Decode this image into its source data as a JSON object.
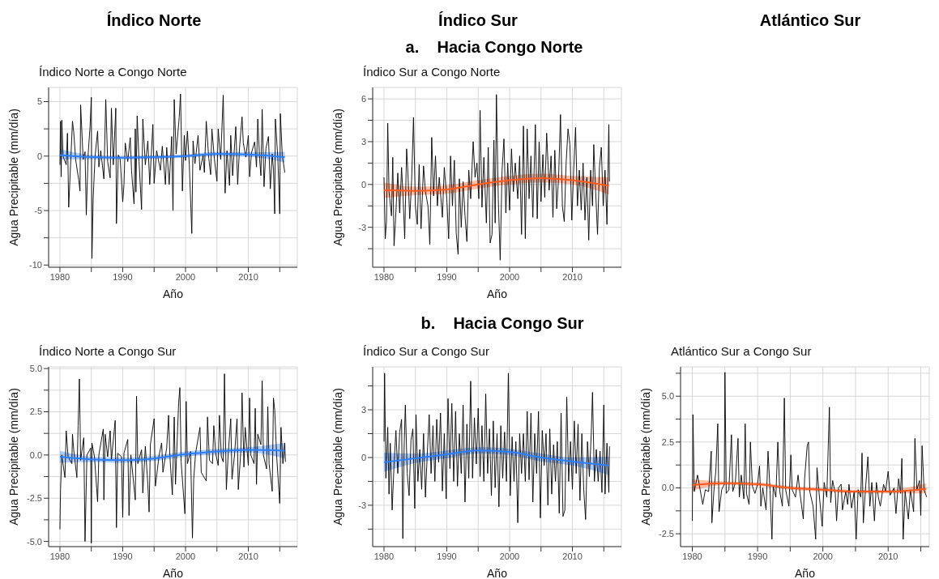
{
  "chart_data": [
    {
      "type": "other",
      "annotations": [
        "Índico Norte",
        "Índico Sur",
        "Atlántico Sur",
        "a.    Hacia Congo Norte",
        "b.    Hacia Congo Sur"
      ]
    },
    {
      "type": "line",
      "title": "Índico Norte a Congo Norte",
      "xlabel": "Año",
      "ylabel": "Agua Precipitable (mm/día)",
      "xlim": [
        1978.2,
        2017.8
      ],
      "xticks": [
        1980,
        {
          "value": 1985,
          "label": null
        },
        1990,
        {
          "value": 1995,
          "label": null
        },
        2000,
        {
          "value": 2005,
          "label": null
        },
        2010,
        {
          "value": 2015,
          "label": null
        }
      ],
      "ylim": [
        -10.2,
        6.3
      ],
      "yticks": [
        -10,
        {
          "value": -7.5,
          "label": null
        },
        -5,
        {
          "value": -2.5,
          "label": null
        },
        0,
        {
          "value": 2.5,
          "label": null
        },
        5
      ],
      "grid": true,
      "series": [
        {
          "color": "#000000",
          "x": [
            1980.0,
            1980.1,
            1980.2,
            1980.3,
            1980.5,
            1981.0,
            1981.2,
            1981.4,
            1982.0,
            1982.2,
            1982.5,
            1983.0,
            1983.2,
            1983.3,
            1983.7,
            1984.0,
            1984.2,
            1984.5,
            1984.8,
            1985.0,
            1985.1,
            1985.3,
            1985.6,
            1986.0,
            1986.2,
            1986.5,
            1987.0,
            1987.3,
            1987.6,
            1988.0,
            1988.2,
            1988.5,
            1988.9,
            1989.0,
            1989.3,
            1989.6,
            1990.0,
            1990.2,
            1990.4,
            1990.8,
            1991.2,
            1991.4,
            1991.8,
            1992.0,
            1992.1,
            1992.3,
            1992.6,
            1993.0,
            1993.2,
            1993.6,
            1994.0,
            1994.3,
            1994.8,
            1995.0,
            1995.4,
            1996.0,
            1996.3,
            1996.8,
            1997.0,
            1997.4,
            1997.8,
            1998.0,
            1998.2,
            1998.5,
            1999.0,
            1999.2,
            1999.5,
            1999.8,
            2000.0,
            2000.3,
            2000.6,
            2001.0,
            2001.2,
            2001.5,
            2002.0,
            2002.3,
            2002.8,
            2003.0,
            2003.3,
            2003.7,
            2004.0,
            2004.2,
            2004.6,
            2005.0,
            2005.2,
            2005.6,
            2006.0,
            2006.3,
            2006.6,
            2007.0,
            2007.2,
            2007.5,
            2008.0,
            2008.3,
            2008.6,
            2009.0,
            2009.2,
            2009.6,
            2010.0,
            2010.2,
            2010.5,
            2011.0,
            2011.3,
            2011.5,
            2011.8,
            2012.0,
            2012.2,
            2012.5,
            2012.8,
            2013.2,
            2013.5,
            2013.8,
            2014.0,
            2014.2,
            2014.3,
            2014.7,
            2015.0,
            2015.1,
            2015.4,
            2015.8
          ],
          "values": [
            -0.8,
            3.2,
            -1.9,
            3.3,
            0,
            -0.8,
            2.1,
            -4.7,
            3.2,
            2.2,
            -0.3,
            -2.2,
            -3.2,
            4.7,
            -0.3,
            0.4,
            -5.4,
            0.2,
            2.7,
            5.4,
            -9.4,
            -3.8,
            0,
            2.3,
            -1.0,
            0.5,
            -2.1,
            5.2,
            -0.5,
            -2.0,
            4.4,
            -0.8,
            4.4,
            -6.2,
            0.1,
            -0.3,
            -4.2,
            -2.6,
            1.2,
            -0.5,
            1.7,
            -1.3,
            -4.4,
            2.5,
            -3.3,
            3.7,
            -0.5,
            -4.9,
            3.4,
            -0.8,
            1.4,
            -2.6,
            2.9,
            -2.5,
            0.5,
            -1.3,
            0.9,
            -2.6,
            0.8,
            -2.6,
            1.8,
            -5.0,
            5.2,
            0.2,
            3.6,
            5.7,
            -3.2,
            1.9,
            -0.4,
            2.3,
            -0.8,
            -7.1,
            1.4,
            -0.7,
            1.9,
            -1.3,
            0.1,
            -1.5,
            3.2,
            -0.2,
            -1.7,
            2.5,
            -0.3,
            -2.3,
            2.5,
            -0.3,
            5.6,
            -3.4,
            0.5,
            -2.7,
            1.9,
            -1.8,
            2.7,
            -2.6,
            0.8,
            3.6,
            1.2,
            -0.1,
            1.9,
            -1.9,
            0.3,
            1.3,
            -1.0,
            3.4,
            -0.3,
            -1.8,
            4.3,
            -2.8,
            0.7,
            1.8,
            -3.0,
            0.2,
            -1.2,
            -5.3,
            3.4,
            -0.2,
            -5.3,
            3.9,
            0.1,
            -1.5
          ]
        },
        {
          "color": "#2c7fff",
          "x": [
            1980,
            1985,
            1990,
            1995,
            2000,
            2005,
            2010,
            2015.8
          ],
          "values": [
            0.1,
            -0.1,
            -0.15,
            -0.1,
            0.0,
            0.2,
            0.15,
            -0.1
          ],
          "lower": [
            -0.3,
            -0.3,
            -0.3,
            -0.25,
            -0.15,
            0.0,
            -0.05,
            -0.6
          ],
          "upper": [
            0.65,
            0.1,
            0.0,
            0.05,
            0.15,
            0.4,
            0.35,
            0.4
          ]
        }
      ]
    },
    {
      "type": "line",
      "title": "Índico Sur a Congo Norte",
      "xlabel": "Año",
      "ylabel": "Agua Precipitable (mm/día)",
      "xlim": [
        1978.2,
        2017.8
      ],
      "xticks": [
        1980,
        {
          "value": 1985,
          "label": null
        },
        1990,
        {
          "value": 1995,
          "label": null
        },
        2000,
        {
          "value": 2005,
          "label": null
        },
        2010,
        {
          "value": 2015,
          "label": null
        }
      ],
      "ylim": [
        -5.8,
        6.8
      ],
      "yticks": [
        {
          "value": -4.5,
          "label": null
        },
        -3,
        {
          "value": -1.5,
          "label": null
        },
        0,
        {
          "value": 1.5,
          "label": null
        },
        3,
        {
          "value": 4.5,
          "label": null
        },
        6
      ],
      "grid": true,
      "series": [
        {
          "color": "#000000",
          "x": [
            1980.0,
            1980.2,
            1980.4,
            1980.6,
            1980.8,
            1981.2,
            1981.4,
            1981.6,
            1981.8,
            1982.2,
            1982.5,
            1982.8,
            1983.0,
            1983.3,
            1983.6,
            1983.8,
            1984.1,
            1984.4,
            1984.7,
            1985.0,
            1985.3,
            1985.6,
            1985.9,
            1986.3,
            1986.6,
            1987.0,
            1987.3,
            1987.6,
            1987.9,
            1988.2,
            1988.5,
            1988.8,
            1989.3,
            1989.6,
            1990.0,
            1990.3,
            1990.6,
            1990.9,
            1991.2,
            1991.5,
            1991.8,
            1992.0,
            1992.3,
            1992.6,
            1992.9,
            1993.2,
            1993.5,
            1993.8,
            1994.2,
            1994.5,
            1994.8,
            1995.1,
            1995.3,
            1995.6,
            1995.9,
            1996.3,
            1996.6,
            1996.9,
            1997.2,
            1997.5,
            1997.7,
            1997.9,
            1998.2,
            1998.5,
            1998.8,
            1999.1,
            1999.4,
            1999.7,
            2000.0,
            2000.3,
            2000.6,
            2000.9,
            2001.3,
            2001.6,
            2001.9,
            2002.2,
            2002.5,
            2002.8,
            2003.1,
            2003.4,
            2003.7,
            2004.1,
            2004.4,
            2004.7,
            2005.0,
            2005.3,
            2005.6,
            2005.9,
            2006.3,
            2006.6,
            2006.9,
            2007.2,
            2007.5,
            2007.8,
            2008.1,
            2008.4,
            2008.7,
            2009.0,
            2009.3,
            2009.6,
            2009.9,
            2010.2,
            2010.5,
            2010.8,
            2011.1,
            2011.4,
            2011.7,
            2012.0,
            2012.3,
            2012.6,
            2012.9,
            2013.2,
            2013.4,
            2013.7,
            2014.0,
            2014.3,
            2014.6,
            2014.9,
            2015.2,
            2015.5,
            2015.8,
            2015.9
          ],
          "values": [
            0.5,
            -3.8,
            -2.6,
            4.3,
            -0.5,
            -2.2,
            1.9,
            -4.3,
            -2.8,
            0.8,
            -2.0,
            1.2,
            -0.5,
            -3.8,
            2.5,
            0.9,
            -2.4,
            0.3,
            4.7,
            -1.5,
            -2.8,
            1.4,
            -3.1,
            1.3,
            -0.5,
            -1.5,
            -4.2,
            3.3,
            -0.8,
            2.0,
            -1.5,
            0.5,
            -2.3,
            1.2,
            -1.0,
            -3.8,
            2.0,
            -1.5,
            1.7,
            -3.4,
            -4.9,
            0.4,
            -3.0,
            0.2,
            -2.2,
            -4.0,
            1.0,
            -1.0,
            3.0,
            0.5,
            1.5,
            -1.0,
            5.2,
            -1.6,
            1.9,
            -2.7,
            2.6,
            -4.1,
            -3.5,
            3.1,
            -2.7,
            6.3,
            -1.0,
            -5.3,
            1.0,
            3.2,
            -2.0,
            1.5,
            -1.8,
            2.5,
            -0.5,
            1.5,
            -1.0,
            2.0,
            -3.5,
            4.1,
            -3.8,
            3.9,
            -1.0,
            2.0,
            -2.3,
            4.2,
            -2.4,
            3.0,
            -1.2,
            2.1,
            -0.9,
            3.6,
            -0.4,
            2.0,
            -2.3,
            2.4,
            -1.7,
            0.5,
            4.9,
            -1.5,
            -2.6,
            1.5,
            3.9,
            2.8,
            -2.5,
            1.0,
            4.0,
            -1.5,
            1.0,
            -1.8,
            1.5,
            -2.5,
            0.5,
            -3.9,
            1.0,
            -1.5,
            2.8,
            -0.5,
            -3.5,
            1.2,
            2.6,
            -1.5,
            1.0,
            -2.8,
            4.2,
            0.2
          ]
        },
        {
          "color": "#ff5b1f",
          "x": [
            1980,
            1985,
            1990,
            1995,
            2000,
            2005,
            2010,
            2015.8
          ],
          "values": [
            -0.4,
            -0.45,
            -0.35,
            0.0,
            0.3,
            0.45,
            0.3,
            -0.1
          ],
          "lower": [
            -0.95,
            -0.75,
            -0.65,
            -0.3,
            0.0,
            0.15,
            0.0,
            -0.7
          ],
          "upper": [
            0.15,
            -0.15,
            -0.05,
            0.3,
            0.6,
            0.75,
            0.6,
            0.5
          ]
        }
      ]
    },
    {
      "type": "line",
      "title": "Índico Norte a Congo Sur",
      "xlabel": "Año",
      "ylabel": "Agua Precipitable (mm/día)",
      "xlim": [
        1978.2,
        2017.8
      ],
      "xticks": [
        1980,
        {
          "value": 1985,
          "label": null
        },
        1990,
        {
          "value": 1995,
          "label": null
        },
        2000,
        {
          "value": 2005,
          "label": null
        },
        2010,
        {
          "value": 2015,
          "label": null
        }
      ],
      "ylim": [
        -5.3,
        5.1
      ],
      "yticks": [
        {
          "value": -5,
          "label": "-5.0"
        },
        {
          "value": -3.75,
          "label": null
        },
        -2.5,
        {
          "value": -1.25,
          "label": null
        },
        {
          "value": 0,
          "label": "0.0"
        },
        {
          "value": 1.25,
          "label": null
        },
        2.5,
        {
          "value": 3.75,
          "label": null
        },
        {
          "value": 5,
          "label": "5.0"
        }
      ],
      "grid": true,
      "series": [
        {
          "color": "#000000",
          "x": [
            1980.0,
            1980.1,
            1980.3,
            1980.8,
            1981.0,
            1981.3,
            1981.9,
            1982.0,
            1982.2,
            1982.7,
            1982.9,
            1983.1,
            1983.3,
            1983.8,
            1984.0,
            1984.3,
            1984.9,
            1985.0,
            1985.1,
            1985.5,
            1986.0,
            1986.2,
            1986.9,
            1987.0,
            1987.2,
            1987.6,
            1988.0,
            1988.2,
            1988.8,
            1989.0,
            1989.2,
            1989.8,
            1990.0,
            1990.2,
            1990.8,
            1991.0,
            1991.3,
            1992.0,
            1992.2,
            1992.4,
            1993.0,
            1993.2,
            1993.6,
            1994.0,
            1994.2,
            1994.4,
            1995.0,
            1995.2,
            1995.8,
            1996.2,
            1996.4,
            1997.0,
            1997.3,
            1997.5,
            1997.9,
            1998.2,
            1998.4,
            1998.9,
            1999.1,
            1999.3,
            1999.9,
            2000.1,
            2000.3,
            2000.8,
            2001.1,
            2001.3,
            2001.6,
            2002.3,
            2002.5,
            2003.3,
            2003.5,
            2003.8,
            2004.3,
            2004.5,
            2004.8,
            2005.2,
            2005.4,
            2005.7,
            2006.0,
            2006.2,
            2006.5,
            2006.8,
            2007.2,
            2007.4,
            2007.8,
            2008.2,
            2008.4,
            2008.8,
            2009.0,
            2009.3,
            2009.5,
            2010.0,
            2010.2,
            2010.4,
            2010.9,
            2011.1,
            2011.3,
            2011.5,
            2012.0,
            2012.2,
            2012.4,
            2012.9,
            2013.1,
            2013.3,
            2013.8,
            2014.0,
            2014.2,
            2014.5,
            2015.0,
            2015.2,
            2015.5,
            2015.8,
            2015.9
          ],
          "values": [
            -4.3,
            -2.0,
            0.0,
            -1.3,
            1.4,
            -0.1,
            -0.5,
            1.2,
            0.3,
            -1.3,
            1.7,
            4.4,
            -0.3,
            1.0,
            -5.0,
            0.0,
            0.4,
            -5.1,
            0.7,
            -0.1,
            -2.7,
            0.0,
            1.5,
            -2.6,
            1.2,
            -0.1,
            1.4,
            -0.3,
            2.0,
            -4.2,
            0.1,
            -0.1,
            -3.6,
            0.1,
            0.9,
            -3.5,
            0.0,
            -2.6,
            3.4,
            -0.5,
            0.3,
            -2.2,
            0.5,
            -1.7,
            -3.3,
            0.6,
            2.1,
            -1.8,
            0.0,
            0.7,
            -1.0,
            0.4,
            2.3,
            0.0,
            -2.3,
            2.2,
            -1.7,
            3.0,
            3.9,
            -0.4,
            -3.4,
            3.1,
            -0.5,
            0.2,
            -4.8,
            -1.4,
            0.1,
            1.6,
            -1.0,
            -1.5,
            2.2,
            -0.3,
            -0.5,
            1.7,
            0.1,
            -0.6,
            2.3,
            -0.1,
            -0.4,
            4.7,
            -2.0,
            0.1,
            2.1,
            -1.4,
            0.0,
            2.1,
            -2.0,
            0.2,
            3.6,
            -0.7,
            1.6,
            -0.6,
            3.3,
            0.0,
            -0.5,
            2.7,
            -1.7,
            1.2,
            0.6,
            4.3,
            0.0,
            -0.8,
            2.8,
            -0.5,
            -2.1,
            3.3,
            2.6,
            0.0,
            -2.8,
            1.6,
            -0.5,
            0.7,
            -0.4
          ]
        },
        {
          "color": "#2c7fff",
          "x": [
            1980,
            1985,
            1990,
            1995,
            2000,
            2005,
            2010,
            2015.8
          ],
          "values": [
            -0.1,
            -0.25,
            -0.3,
            -0.2,
            0.05,
            0.2,
            0.3,
            0.25
          ],
          "lower": [
            -0.45,
            -0.4,
            -0.45,
            -0.35,
            -0.1,
            0.05,
            0.15,
            -0.2
          ],
          "upper": [
            0.25,
            -0.1,
            -0.15,
            -0.05,
            0.2,
            0.35,
            0.45,
            0.7
          ]
        }
      ]
    },
    {
      "type": "line",
      "title": "Índico Sur a Congo Sur",
      "xlabel": "Año",
      "ylabel": "Agua Precipitable (mm/día)",
      "xlim": [
        1978.2,
        2017.8
      ],
      "xticks": [
        1980,
        {
          "value": 1985,
          "label": null
        },
        1990,
        {
          "value": 1995,
          "label": null
        },
        2000,
        {
          "value": 2005,
          "label": null
        },
        2010,
        {
          "value": 2015,
          "label": null
        }
      ],
      "ylim": [
        -5.6,
        5.7
      ],
      "yticks": [
        {
          "value": -4.5,
          "label": null
        },
        -3,
        {
          "value": -1.5,
          "label": null
        },
        0,
        {
          "value": 1.5,
          "label": null
        },
        3,
        {
          "value": 4.5,
          "label": null
        }
      ],
      "grid": true,
      "series": [
        {
          "color": "#000000",
          "x": [
            1980.0,
            1980.1,
            1980.3,
            1980.6,
            1980.8,
            1981.0,
            1981.3,
            1981.6,
            1981.9,
            1982.2,
            1982.5,
            1982.8,
            1983.0,
            1983.2,
            1983.4,
            1983.7,
            1984.0,
            1984.3,
            1984.6,
            1984.9,
            1985.1,
            1985.4,
            1985.7,
            1986.0,
            1986.3,
            1986.6,
            1986.9,
            1987.2,
            1987.5,
            1987.8,
            1988.1,
            1988.4,
            1988.7,
            1989.0,
            1989.3,
            1989.6,
            1989.9,
            1990.2,
            1990.5,
            1990.8,
            1991.1,
            1991.4,
            1991.7,
            1992.0,
            1992.3,
            1992.6,
            1992.9,
            1993.2,
            1993.5,
            1993.8,
            1994.1,
            1994.4,
            1994.7,
            1995.0,
            1995.3,
            1995.6,
            1995.9,
            1996.2,
            1996.5,
            1996.8,
            1997.1,
            1997.4,
            1997.7,
            1998.0,
            1998.3,
            1998.6,
            1998.9,
            1999.2,
            1999.5,
            1999.8,
            2000.1,
            2000.4,
            2000.7,
            2001.0,
            2001.3,
            2001.6,
            2001.9,
            2002.2,
            2002.5,
            2002.8,
            2003.1,
            2003.4,
            2003.7,
            2004.0,
            2004.3,
            2004.6,
            2004.9,
            2005.2,
            2005.5,
            2005.8,
            2006.1,
            2006.4,
            2006.7,
            2007.0,
            2007.3,
            2007.6,
            2007.9,
            2008.2,
            2008.5,
            2008.8,
            2009.1,
            2009.4,
            2009.7,
            2010.0,
            2010.3,
            2010.6,
            2010.9,
            2011.2,
            2011.5,
            2011.8,
            2012.1,
            2012.4,
            2012.7,
            2013.0,
            2013.2,
            2013.5,
            2013.8,
            2014.1,
            2014.4,
            2014.7,
            2015.0,
            2015.2,
            2015.5,
            2015.8,
            2015.9
          ],
          "values": [
            1.0,
            5.3,
            -1.3,
            1.9,
            -2.3,
            0.9,
            -3.3,
            -0.5,
            1.7,
            -1.0,
            1.6,
            2.4,
            -5.1,
            0.5,
            3.3,
            -1.0,
            -2.4,
            1.1,
            1.8,
            -3.2,
            2.7,
            -1.5,
            0.5,
            -2.0,
            1.5,
            -2.5,
            0.3,
            2.7,
            -1.0,
            2.0,
            -1.5,
            2.4,
            -0.3,
            2.8,
            -2.1,
            1.5,
            -2.6,
            3.7,
            -0.7,
            3.4,
            -1.5,
            2.9,
            -1.8,
            1.5,
            -1.0,
            3.3,
            -2.8,
            2.1,
            -1.3,
            4.8,
            -1.3,
            2.5,
            -0.4,
            3.1,
            -1.2,
            2.0,
            -1.5,
            4.0,
            -1.0,
            1.8,
            -2.4,
            2.3,
            -1.9,
            1.5,
            -3.1,
            2.0,
            -1.3,
            1.6,
            -1.5,
            5.3,
            -2.4,
            1.3,
            -1.5,
            1.0,
            -4.1,
            1.5,
            -1.0,
            1.5,
            -1.5,
            2.9,
            -1.4,
            2.8,
            -2.8,
            1.5,
            -1.0,
            2.9,
            -3.8,
            1.7,
            -0.5,
            1.5,
            -3.0,
            1.8,
            -2.3,
            0.8,
            -1.5,
            1.0,
            -3.5,
            2.8,
            -3.7,
            -3.3,
            3.8,
            -1.5,
            1.0,
            -2.0,
            2.3,
            -1.0,
            2.1,
            -2.7,
            1.5,
            -2.0,
            -3.9,
            1.0,
            -1.2,
            1.5,
            4.1,
            -1.5,
            0.5,
            -1.5,
            0.4,
            -2.2,
            3.3,
            -2.3,
            0.9,
            -2.2,
            0.7
          ]
        },
        {
          "color": "#2c7fff",
          "x": [
            1980,
            1985,
            1990,
            1995,
            2000,
            2005,
            2010,
            2015.8
          ],
          "values": [
            -0.3,
            -0.05,
            0.2,
            0.45,
            0.35,
            0.0,
            -0.25,
            -0.5
          ],
          "lower": [
            -0.9,
            -0.35,
            -0.05,
            0.25,
            0.15,
            -0.25,
            -0.5,
            -1.1
          ],
          "upper": [
            0.3,
            0.25,
            0.45,
            0.65,
            0.55,
            0.25,
            0.0,
            0.05
          ]
        }
      ]
    },
    {
      "type": "line",
      "title": "Atlántico Sur a Congo Sur",
      "xlabel": "Año",
      "ylabel": "Agua Precipitable (mm/día)",
      "xlim": [
        1978.2,
        2016.3
      ],
      "xticks": [
        1980,
        {
          "value": 1985,
          "label": null
        },
        1990,
        {
          "value": 1995,
          "label": null
        },
        2000,
        {
          "value": 2005,
          "label": null
        },
        2010,
        {
          "value": 2015,
          "label": null
        }
      ],
      "ylim": [
        -3.2,
        6.6
      ],
      "yticks": [
        -2.5,
        {
          "value": -1.25,
          "label": null
        },
        {
          "value": 0,
          "label": "0.0"
        },
        {
          "value": 1.25,
          "label": null
        },
        2.5,
        {
          "value": 3.75,
          "label": null
        },
        {
          "value": 5,
          "label": "5.0"
        },
        {
          "value": 6.25,
          "label": null
        }
      ],
      "grid": true,
      "series": [
        {
          "color": "#000000",
          "x": [
            1980.0,
            1980.1,
            1980.3,
            1980.8,
            1981.1,
            1981.6,
            1982.0,
            1982.5,
            1982.9,
            1983.0,
            1983.3,
            1983.6,
            1983.9,
            1984.1,
            1984.5,
            1984.9,
            1985.0,
            1985.2,
            1985.6,
            1986.0,
            1986.2,
            1986.6,
            1987.0,
            1987.2,
            1987.5,
            1987.9,
            1988.1,
            1988.3,
            1988.7,
            1988.9,
            1989.2,
            1989.6,
            1990.0,
            1990.3,
            1990.5,
            1990.8,
            1991.3,
            1991.6,
            1991.9,
            1992.2,
            1992.4,
            1992.8,
            1993.1,
            1993.4,
            1993.8,
            1994.1,
            1994.3,
            1994.8,
            1995.1,
            1995.3,
            1995.8,
            1996.2,
            1996.5,
            1997.0,
            1997.2,
            1997.6,
            1997.8,
            1998.0,
            1998.5,
            1998.9,
            1999.1,
            1999.4,
            1999.9,
            2000.2,
            2000.6,
            2001.0,
            2001.2,
            2001.5,
            2001.9,
            2002.1,
            2002.4,
            2002.8,
            2003.0,
            2003.5,
            2003.8,
            2004.0,
            2004.4,
            2004.8,
            2005.1,
            2005.4,
            2005.8,
            2006.0,
            2006.2,
            2006.5,
            2006.9,
            2007.2,
            2007.5,
            2007.9,
            2008.2,
            2008.5,
            2008.8,
            2009.3,
            2009.6,
            2010.0,
            2010.3,
            2010.9,
            2011.2,
            2011.6,
            2011.9,
            2012.1,
            2012.3,
            2012.6,
            2013.1,
            2013.4,
            2013.9,
            2014.1,
            2014.4,
            2014.8,
            2015.0,
            2015.2,
            2015.5,
            2015.9
          ],
          "values": [
            -1.8,
            4.0,
            -0.2,
            0.7,
            0.1,
            -0.9,
            -0.1,
            -0.2,
            2.0,
            -1.9,
            -0.2,
            0.9,
            3.5,
            -1.3,
            -0.1,
            0.2,
            6.3,
            -0.3,
            -0.1,
            2.9,
            -0.2,
            0.3,
            2.7,
            -0.5,
            0.7,
            -0.6,
            3.5,
            -0.3,
            -0.9,
            2.5,
            0.1,
            -0.3,
            0.2,
            1.2,
            -1.0,
            0.0,
            -1.2,
            2.0,
            -0.1,
            -2.8,
            0.1,
            -0.5,
            2.5,
            -0.2,
            -1.0,
            4.9,
            -0.1,
            -1.0,
            1.8,
            -0.1,
            -0.5,
            0.7,
            -0.3,
            -1.7,
            0.5,
            2.3,
            2.5,
            -0.2,
            -1.0,
            -2.8,
            1.1,
            -0.2,
            -2.1,
            0.3,
            -0.5,
            4.4,
            -0.8,
            0.4,
            -0.3,
            -1.8,
            0.0,
            0.2,
            -1.2,
            -0.2,
            -0.9,
            0.2,
            -1.1,
            -0.2,
            -2.8,
            -0.1,
            -0.5,
            1.9,
            -1.9,
            -0.2,
            1.7,
            -1.0,
            0.3,
            -1.8,
            0.3,
            -0.5,
            -1.0,
            0.2,
            -0.2,
            0.9,
            -0.4,
            0.0,
            -1.4,
            0.5,
            -0.3,
            1.6,
            -2.8,
            -0.2,
            -1.7,
            -0.1,
            -1.3,
            2.7,
            -0.1,
            0.4,
            -1.5,
            2.3,
            -0.1,
            -0.5
          ]
        },
        {
          "color": "#ff5b1f",
          "x": [
            1980,
            1985,
            1990,
            1995,
            2000,
            2005,
            2010,
            2015.8
          ],
          "values": [
            0.15,
            0.25,
            0.2,
            0.0,
            -0.1,
            -0.2,
            -0.2,
            -0.05
          ],
          "lower": [
            -0.15,
            0.15,
            0.1,
            -0.1,
            -0.2,
            -0.3,
            -0.3,
            -0.3
          ],
          "upper": [
            0.45,
            0.35,
            0.3,
            0.1,
            0.0,
            -0.1,
            -0.1,
            0.25
          ]
        }
      ]
    }
  ]
}
